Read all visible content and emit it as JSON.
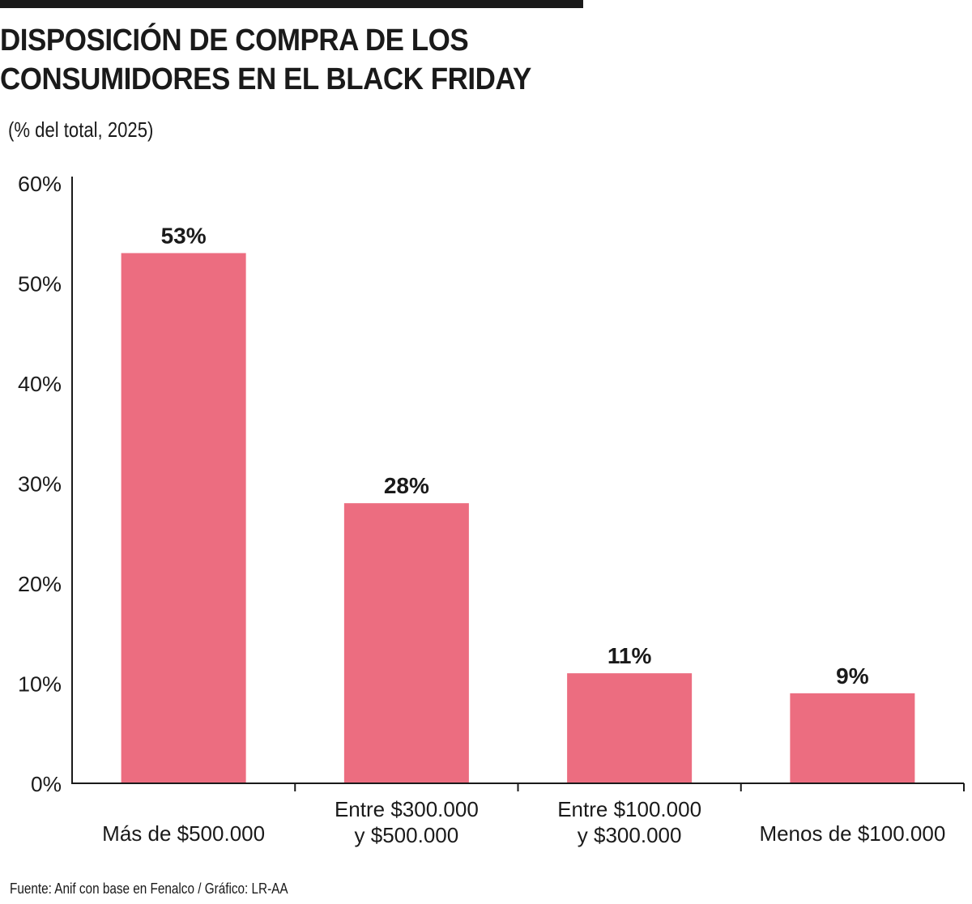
{
  "header": {
    "title_lines": [
      "DISPOSICIÓN DE COMPRA DE LOS",
      "CONSUMIDORES EN EL BLACK FRIDAY"
    ],
    "subtitle": "(% del total, 2025)"
  },
  "footer": {
    "source": "Fuente: Anif con base en Fenalco / Gráfico: LR-AA"
  },
  "colors": {
    "bar": "#ec6d80",
    "axis": "#1a1a1a",
    "text": "#1a1a1a"
  },
  "chart_data": {
    "type": "bar",
    "title": "DISPOSICIÓN DE COMPRA DE LOS CONSUMIDORES EN EL BLACK FRIDAY",
    "subtitle": "(% del total, 2025)",
    "categories": [
      [
        "Más de $500.000"
      ],
      [
        "Entre $300.000",
        "y $500.000"
      ],
      [
        "Entre $100.000",
        "y $300.000"
      ],
      [
        "Menos de $100.000"
      ]
    ],
    "values": [
      53,
      28,
      11,
      9
    ],
    "value_labels": [
      "53%",
      "28%",
      "11%",
      "9%"
    ],
    "ylim": [
      0,
      60
    ],
    "yticks": [
      0,
      10,
      20,
      30,
      40,
      50,
      60
    ],
    "ytick_labels": [
      "0%",
      "10%",
      "20%",
      "30%",
      "40%",
      "50%",
      "60%"
    ],
    "grid": false,
    "legend": "none"
  }
}
